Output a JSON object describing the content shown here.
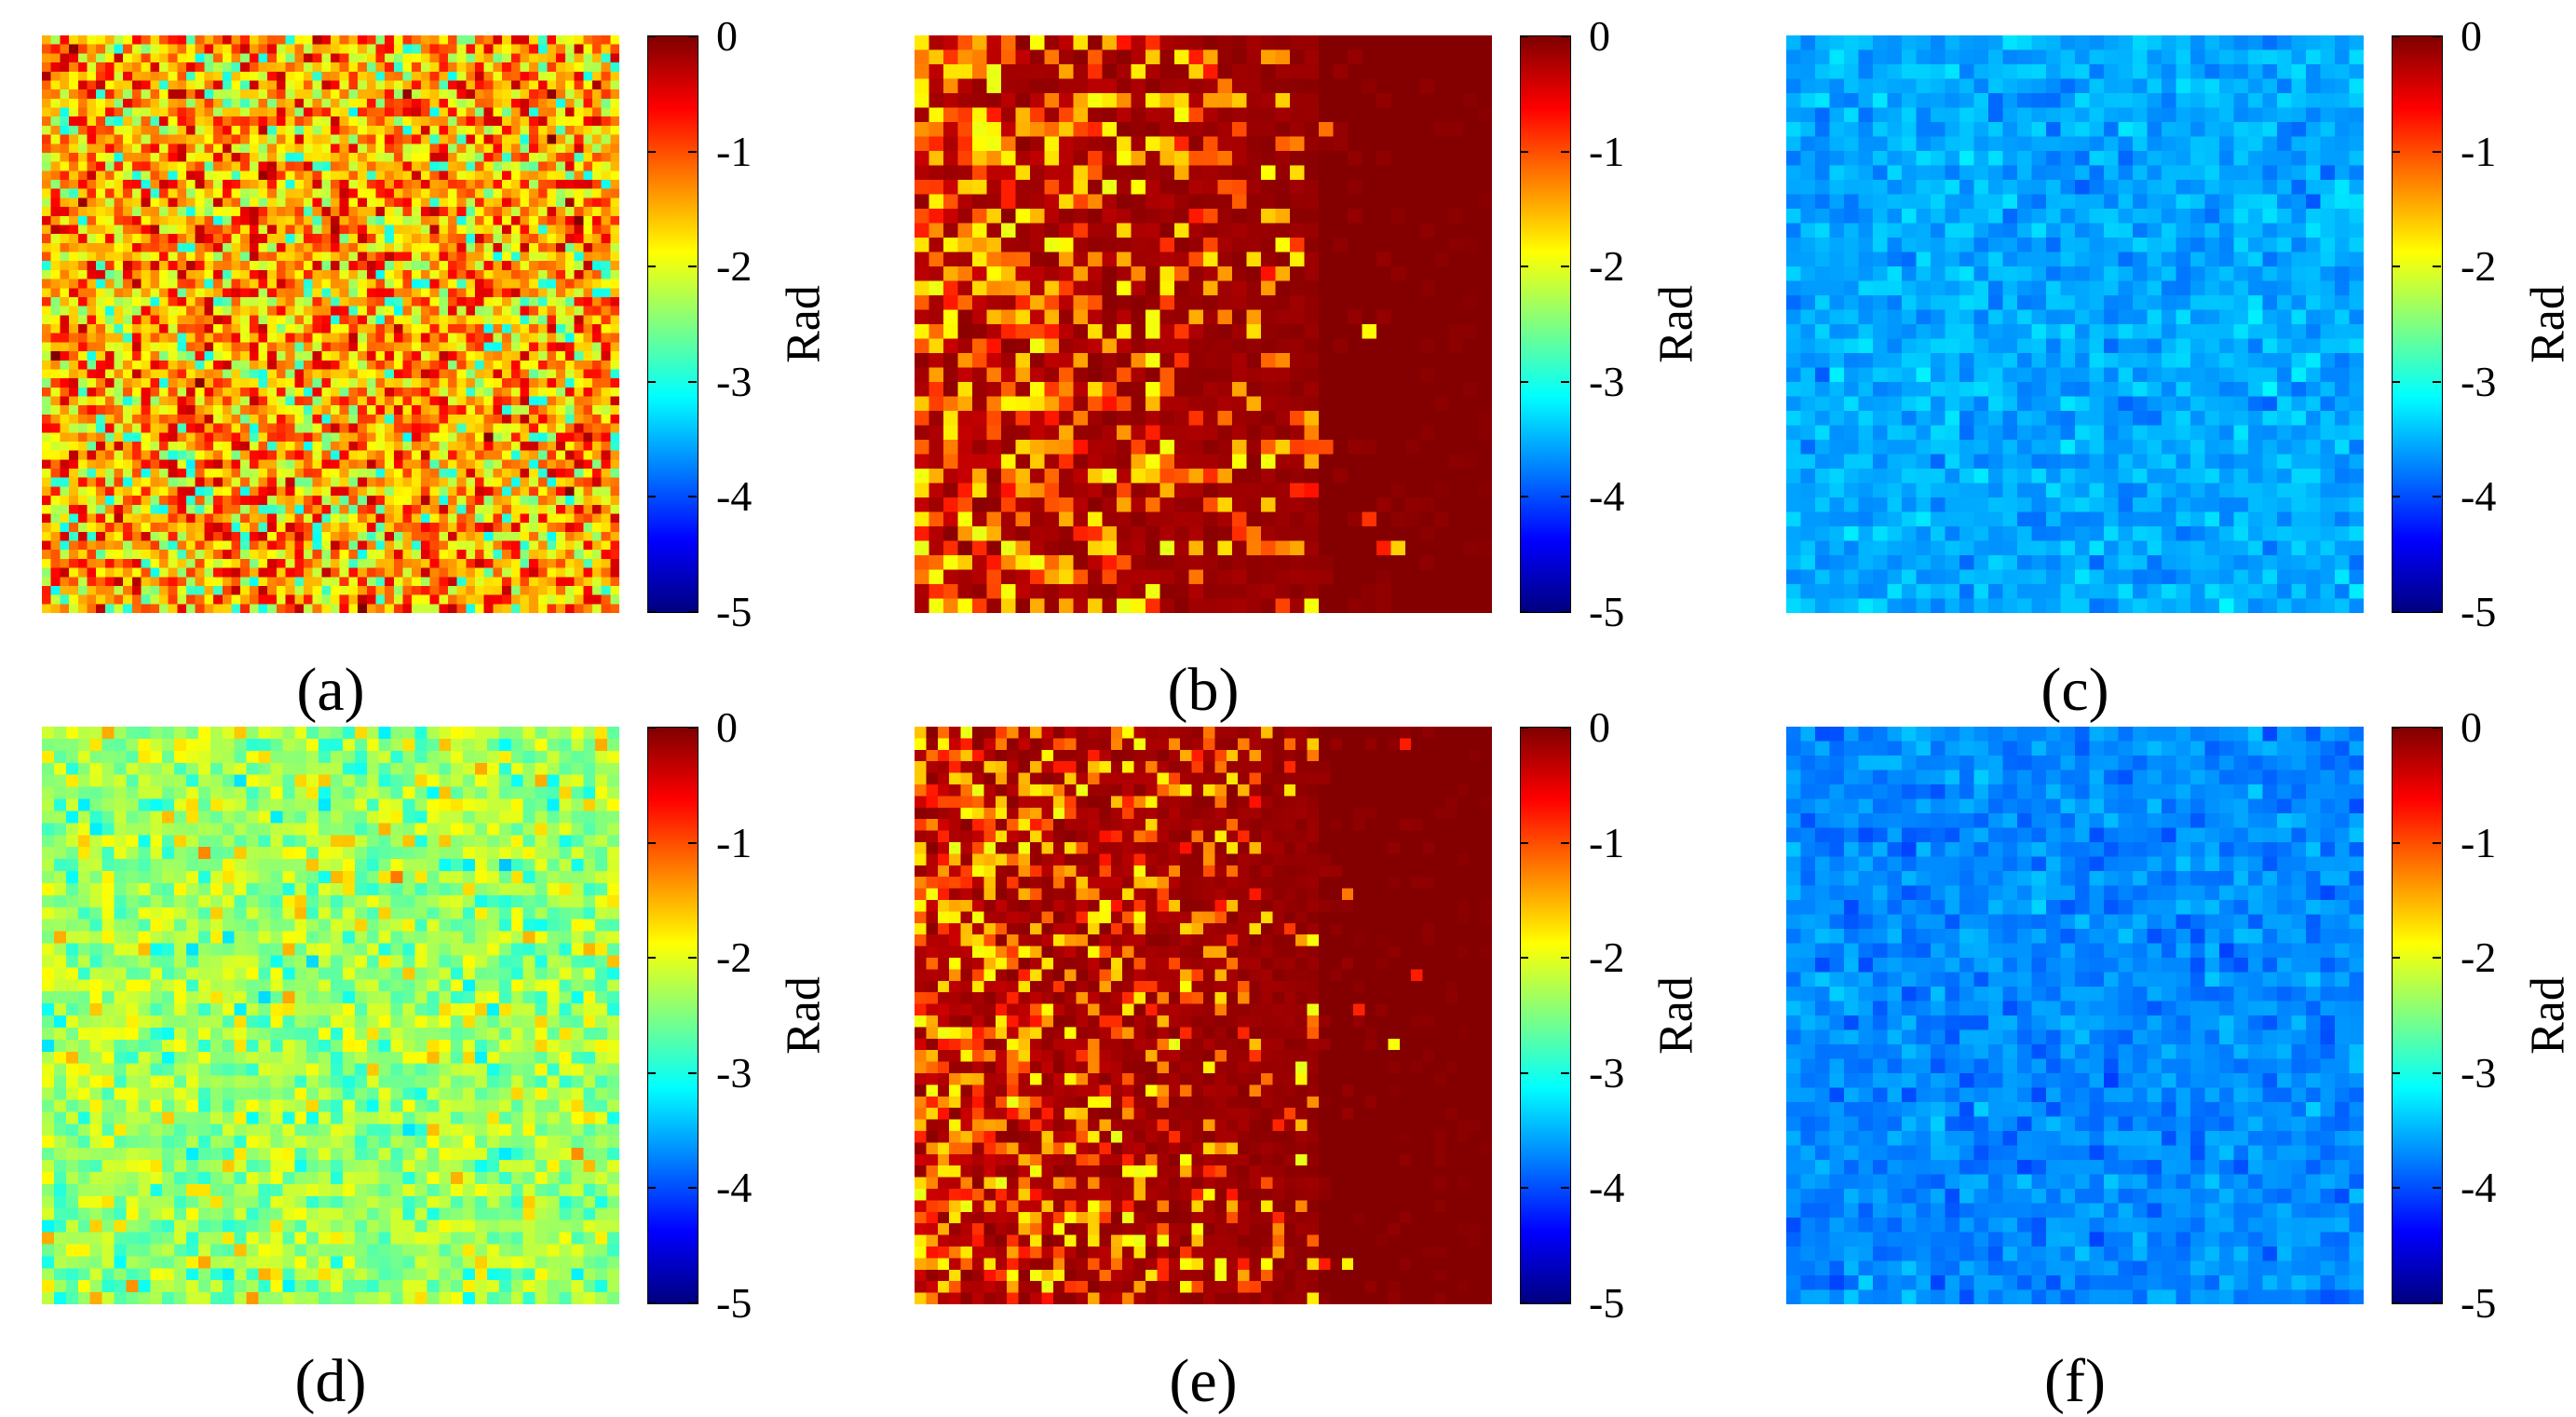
{
  "chart_data": [
    {
      "type": "heatmap",
      "label": "(a)",
      "colorbar_label": "Rad",
      "clim": [
        -5,
        0
      ],
      "ticks": [
        "0",
        "-1",
        "-2",
        "-3",
        "-4",
        "-5"
      ],
      "grid": [
        64,
        64
      ],
      "pattern": "mixed",
      "mean": -1.5,
      "spread": 0.55,
      "gradient": 0
    },
    {
      "type": "heatmap",
      "label": "(b)",
      "colorbar_label": "Rad",
      "clim": [
        -5,
        0
      ],
      "ticks": [
        "0",
        "-1",
        "-2",
        "-3",
        "-4",
        "-5"
      ],
      "grid": [
        40,
        40
      ],
      "pattern": "red-gradient",
      "mean": -0.6,
      "spread": 0.55,
      "gradient": 1
    },
    {
      "type": "heatmap",
      "label": "(c)",
      "colorbar_label": "Rad",
      "clim": [
        -5,
        0
      ],
      "ticks": [
        "0",
        "-1",
        "-2",
        "-3",
        "-4",
        "-5"
      ],
      "grid": [
        40,
        40
      ],
      "pattern": "blue",
      "mean": -3.55,
      "spread": 0.14,
      "gradient": 0
    },
    {
      "type": "heatmap",
      "label": "(d)",
      "colorbar_label": "Rad",
      "clim": [
        -5,
        0
      ],
      "ticks": [
        "0",
        "-1",
        "-2",
        "-3",
        "-4",
        "-5"
      ],
      "grid": [
        48,
        48
      ],
      "pattern": "green-yellow",
      "mean": -2.35,
      "spread": 0.35,
      "gradient": 0
    },
    {
      "type": "heatmap",
      "label": "(e)",
      "colorbar_label": "Rad",
      "clim": [
        -5,
        0
      ],
      "ticks": [
        "0",
        "-1",
        "-2",
        "-3",
        "-4",
        "-5"
      ],
      "grid": [
        50,
        50
      ],
      "pattern": "red-gradient",
      "mean": -0.6,
      "spread": 0.6,
      "gradient": 1
    },
    {
      "type": "heatmap",
      "label": "(f)",
      "colorbar_label": "Rad",
      "clim": [
        -5,
        0
      ],
      "ticks": [
        "0",
        "-1",
        "-2",
        "-3",
        "-4",
        "-5"
      ],
      "grid": [
        40,
        40
      ],
      "pattern": "blue",
      "mean": -3.7,
      "spread": 0.13,
      "gradient": 0
    }
  ]
}
